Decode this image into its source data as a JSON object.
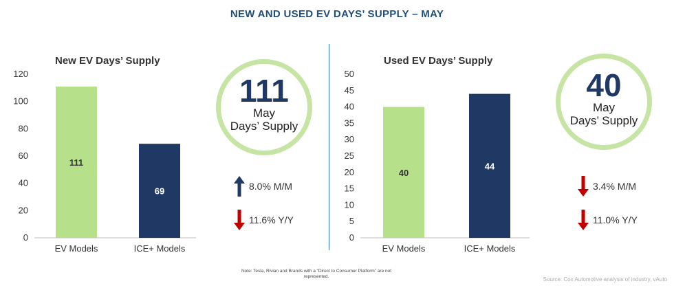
{
  "title": "NEW AND USED EV DAYS’ SUPPLY – MAY",
  "colors": {
    "ev": "#b7e08a",
    "ice": "#1f3864",
    "up": "#1f3864",
    "down": "#c00000",
    "ring": "#c6e5a5"
  },
  "panels": [
    {
      "subtitle": "New EV Days’ Supply",
      "circle": {
        "value": "111",
        "line1": "May",
        "line2": "Days’ Supply"
      },
      "stats": [
        {
          "direction": "up",
          "text": "8.0% M/M"
        },
        {
          "direction": "down",
          "text": "11.6% Y/Y"
        }
      ]
    },
    {
      "subtitle": "Used EV Days’ Supply",
      "circle": {
        "value": "40",
        "line1": "May",
        "line2": "Days’ Supply"
      },
      "stats": [
        {
          "direction": "down",
          "text": "3.4% M/M"
        },
        {
          "direction": "down",
          "text": "11.0% Y/Y"
        }
      ]
    }
  ],
  "chart_data": [
    {
      "type": "bar",
      "title": "New EV Days’ Supply",
      "categories": [
        "EV Models",
        "ICE+ Models"
      ],
      "values": [
        111,
        69
      ],
      "value_labels": [
        "111",
        "69"
      ],
      "ylim": [
        0,
        120
      ],
      "yticks": [
        0,
        20,
        40,
        60,
        80,
        100,
        120
      ],
      "grid": false
    },
    {
      "type": "bar",
      "title": "Used EV Days’ Supply",
      "categories": [
        "EV Models",
        "ICE+ Models"
      ],
      "values": [
        40,
        44
      ],
      "value_labels": [
        "40",
        "44"
      ],
      "ylim": [
        0,
        50
      ],
      "yticks": [
        0,
        5,
        10,
        15,
        20,
        25,
        30,
        35,
        40,
        45,
        50
      ],
      "grid": false
    }
  ],
  "footnote": "Note: Tesla, Rivian and Brands with a “Direct to Consumer Platform” are not represented.",
  "source": "Source: Cox Automotive analysis of industry, vAuto"
}
